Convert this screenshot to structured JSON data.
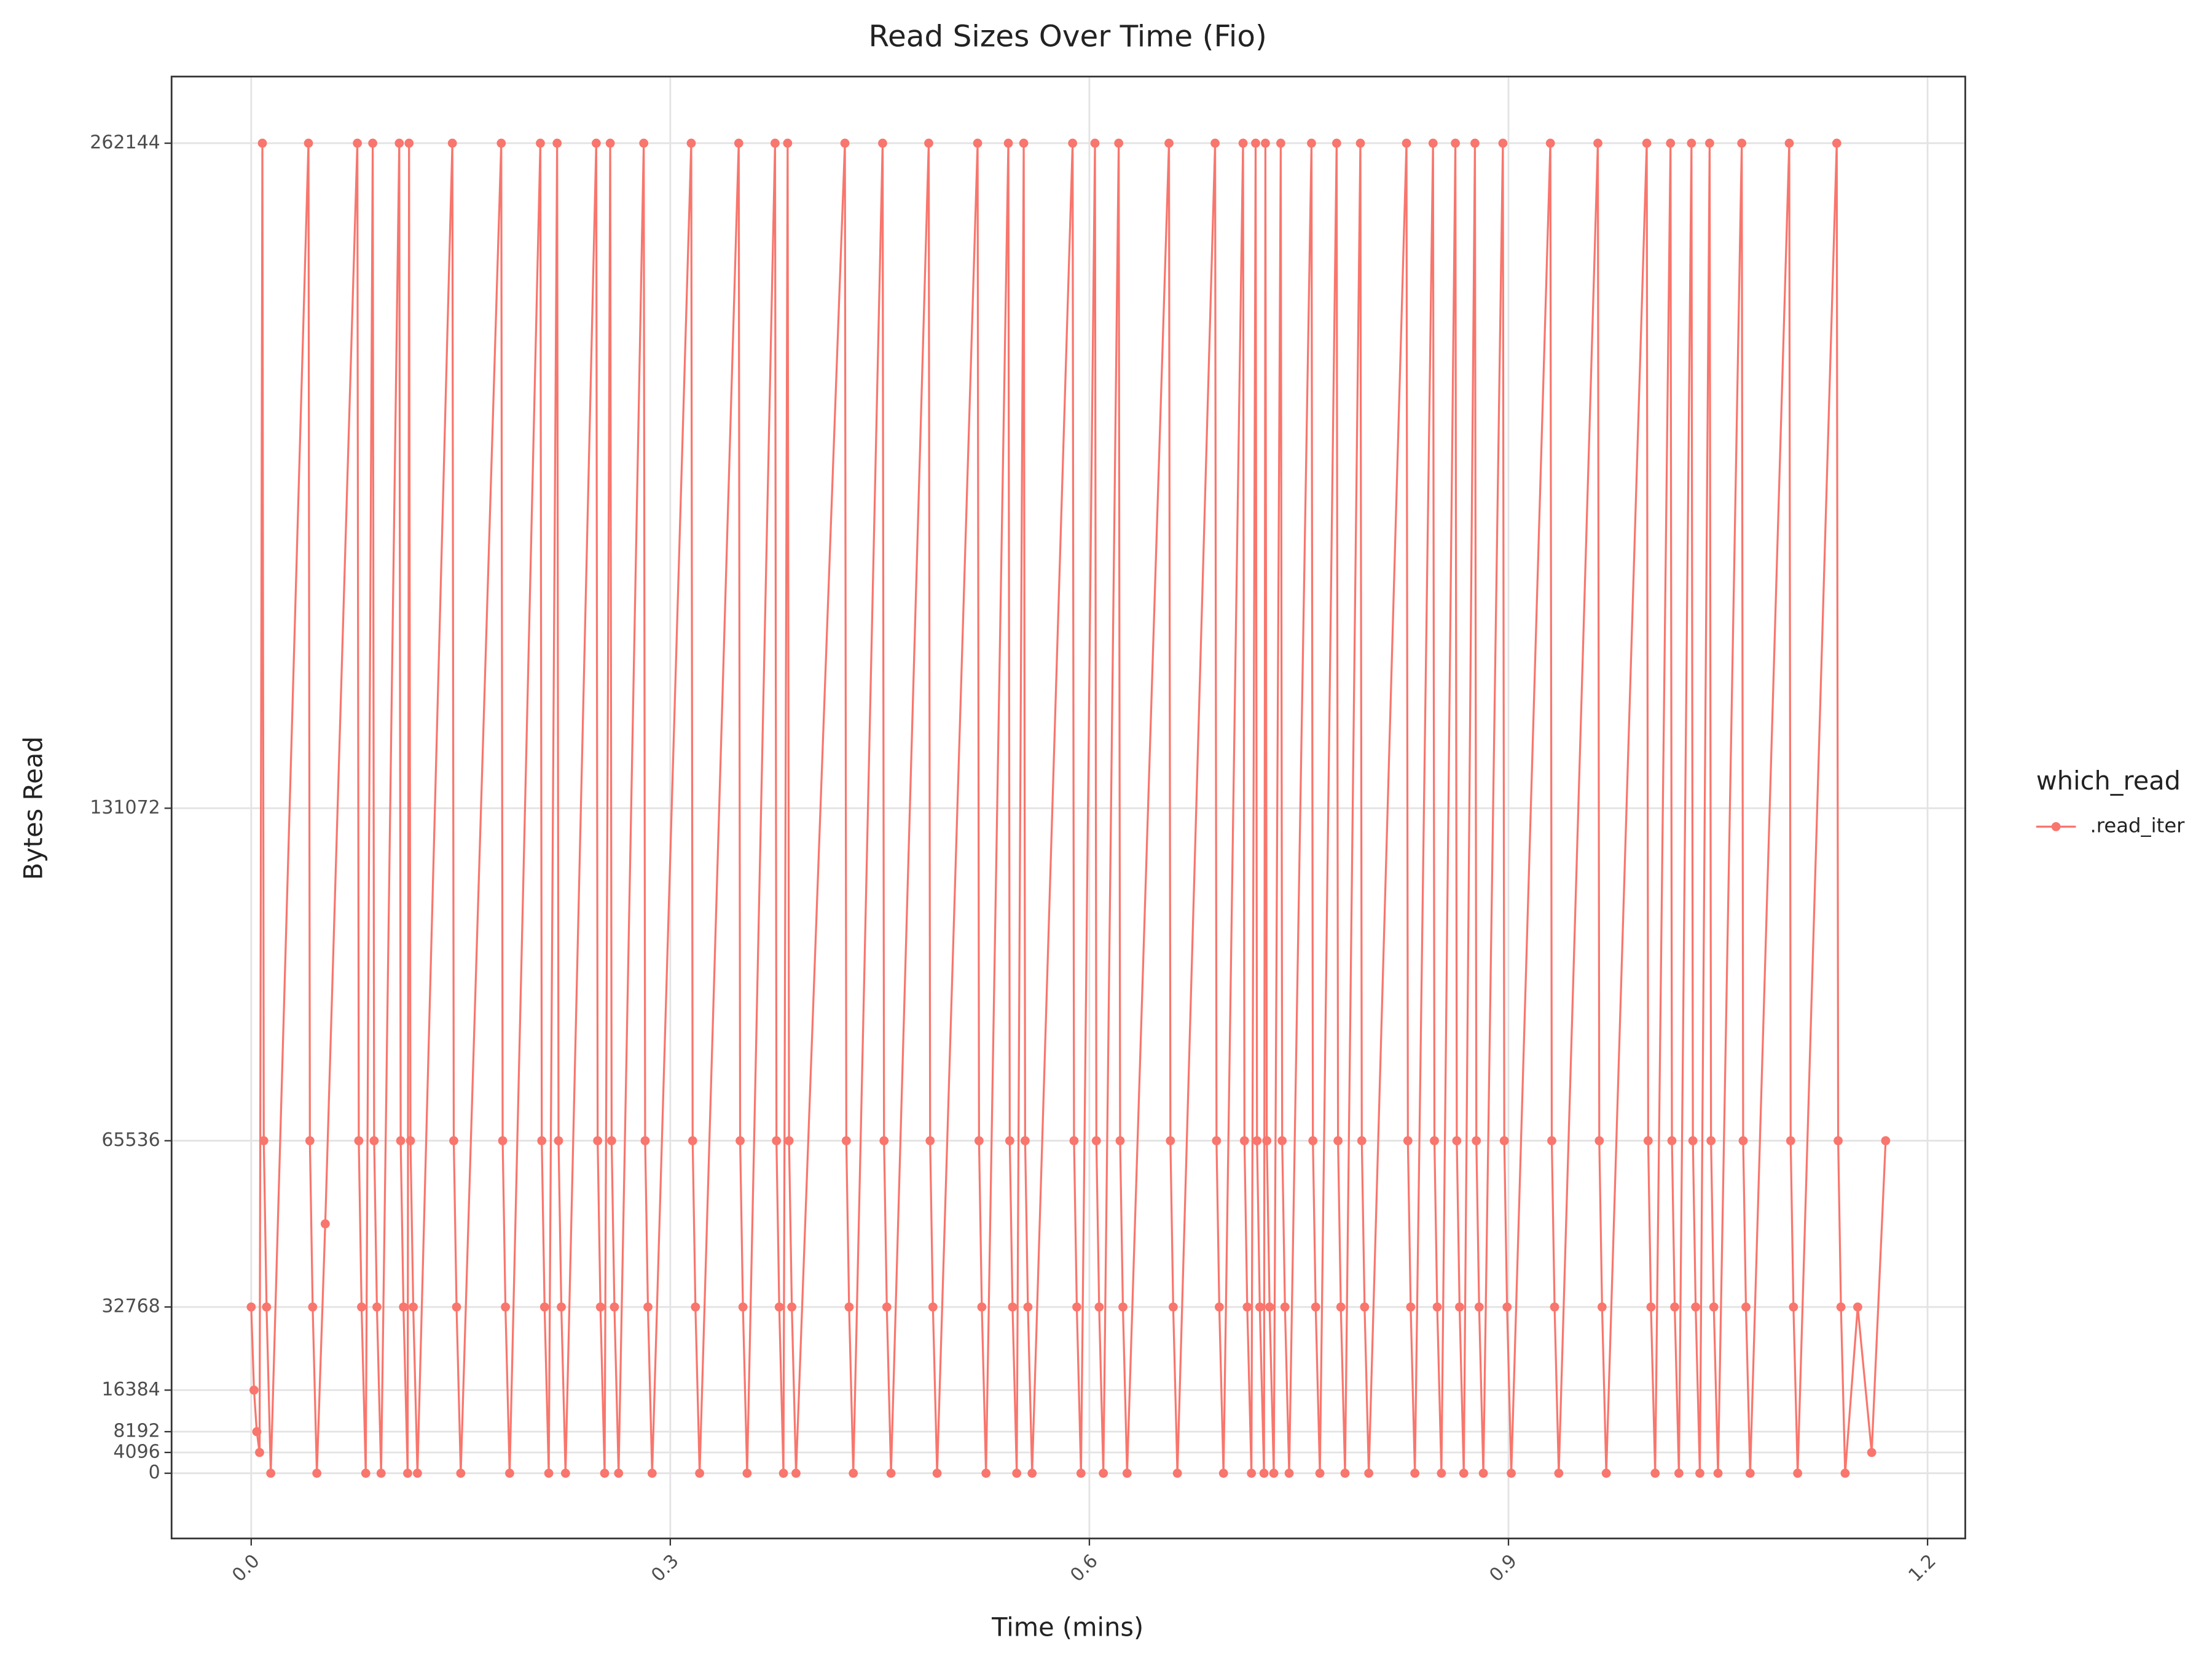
{
  "chart_data": {
    "type": "line",
    "title": "Read Sizes Over Time (Fio)",
    "x_label": "Time (mins)",
    "y_label": "Bytes Read",
    "legend_title": "which_read",
    "legend_position": "right",
    "grid": true,
    "xlim": [
      -0.057,
      1.227
    ],
    "xticks": [
      {
        "value": 0,
        "label": "0.0"
      },
      0.3,
      0.6,
      0.9,
      1.2
    ],
    "ylim": [
      -12856,
      275276
    ],
    "yticks": [
      0,
      4096,
      8192,
      16384,
      32768,
      65536,
      131072,
      262144
    ],
    "x": [
      0,
      0.002,
      0.004,
      0.006,
      0.008,
      0.009,
      0.011,
      0.014,
      0.041,
      0.042,
      0.044,
      0.047,
      0.053,
      0.076,
      0.077,
      0.079,
      0.082,
      0.087,
      0.088,
      0.09,
      0.093,
      0.106,
      0.107,
      0.109,
      0.112,
      0.113,
      0.114,
      0.116,
      0.119,
      0.144,
      0.145,
      0.147,
      0.15,
      0.179,
      0.18,
      0.182,
      0.185,
      0.207,
      0.208,
      0.21,
      0.213,
      0.219,
      0.22,
      0.222,
      0.225,
      0.247,
      0.248,
      0.25,
      0.253,
      0.257,
      0.258,
      0.26,
      0.263,
      0.281,
      0.282,
      0.284,
      0.287,
      0.315,
      0.316,
      0.318,
      0.321,
      0.349,
      0.35,
      0.352,
      0.355,
      0.375,
      0.376,
      0.378,
      0.381,
      0.384,
      0.385,
      0.387,
      0.39,
      0.425,
      0.426,
      0.428,
      0.431,
      0.452,
      0.453,
      0.455,
      0.458,
      0.485,
      0.486,
      0.488,
      0.491,
      0.52,
      0.521,
      0.523,
      0.526,
      0.542,
      0.543,
      0.545,
      0.548,
      0.553,
      0.554,
      0.556,
      0.559,
      0.588,
      0.589,
      0.591,
      0.594,
      0.604,
      0.605,
      0.607,
      0.61,
      0.621,
      0.622,
      0.624,
      0.627,
      0.657,
      0.658,
      0.66,
      0.663,
      0.69,
      0.691,
      0.693,
      0.696,
      0.71,
      0.711,
      0.713,
      0.716,
      0.719,
      0.72,
      0.722,
      0.725,
      0.726,
      0.727,
      0.729,
      0.732,
      0.737,
      0.738,
      0.74,
      0.743,
      0.759,
      0.76,
      0.762,
      0.765,
      0.777,
      0.778,
      0.78,
      0.783,
      0.794,
      0.795,
      0.797,
      0.8,
      0.827,
      0.828,
      0.83,
      0.833,
      0.846,
      0.847,
      0.849,
      0.852,
      0.862,
      0.863,
      0.865,
      0.868,
      0.876,
      0.877,
      0.879,
      0.882,
      0.896,
      0.897,
      0.899,
      0.902,
      0.93,
      0.931,
      0.933,
      0.936,
      0.964,
      0.965,
      0.967,
      0.97,
      0.999,
      1,
      1.002,
      1.005,
      1.016,
      1.017,
      1.019,
      1.022,
      1.031,
      1.032,
      1.034,
      1.037,
      1.044,
      1.045,
      1.047,
      1.05,
      1.067,
      1.068,
      1.07,
      1.073,
      1.101,
      1.102,
      1.104,
      1.107,
      1.135,
      1.136,
      1.138,
      1.141,
      1.15,
      1.16,
      1.17
    ],
    "series": [
      {
        "name": ".read_iter",
        "color": "#f8766d",
        "values": [
          32768,
          16384,
          8192,
          4096,
          262144,
          65536,
          32768,
          0,
          262144,
          65536,
          32768,
          0,
          49152,
          262144,
          65536,
          32768,
          0,
          262144,
          65536,
          32768,
          0,
          262144,
          65536,
          32768,
          0,
          262144,
          65536,
          32768,
          0,
          262144,
          65536,
          32768,
          0,
          262144,
          65536,
          32768,
          0,
          262144,
          65536,
          32768,
          0,
          262144,
          65536,
          32768,
          0,
          262144,
          65536,
          32768,
          0,
          262144,
          65536,
          32768,
          0,
          262144,
          65536,
          32768,
          0,
          262144,
          65536,
          32768,
          0,
          262144,
          65536,
          32768,
          0,
          262144,
          65536,
          32768,
          0,
          262144,
          65536,
          32768,
          0,
          262144,
          65536,
          32768,
          0,
          262144,
          65536,
          32768,
          0,
          262144,
          65536,
          32768,
          0,
          262144,
          65536,
          32768,
          0,
          262144,
          65536,
          32768,
          0,
          262144,
          65536,
          32768,
          0,
          262144,
          65536,
          32768,
          0,
          262144,
          65536,
          32768,
          0,
          262144,
          65536,
          32768,
          0,
          262144,
          65536,
          32768,
          0,
          262144,
          65536,
          32768,
          0,
          262144,
          65536,
          32768,
          0,
          262144,
          65536,
          32768,
          0,
          262144,
          65536,
          32768,
          0,
          262144,
          65536,
          32768,
          0,
          262144,
          65536,
          32768,
          0,
          262144,
          65536,
          32768,
          0,
          262144,
          65536,
          32768,
          0,
          262144,
          65536,
          32768,
          0,
          262144,
          65536,
          32768,
          0,
          262144,
          65536,
          32768,
          0,
          262144,
          65536,
          32768,
          0,
          262144,
          65536,
          32768,
          0,
          262144,
          65536,
          32768,
          0,
          262144,
          65536,
          32768,
          0,
          262144,
          65536,
          32768,
          0,
          262144,
          65536,
          32768,
          0,
          262144,
          65536,
          32768,
          0,
          262144,
          65536,
          32768,
          0,
          262144,
          65536,
          32768,
          0,
          262144,
          65536,
          32768,
          0,
          262144,
          65536,
          32768,
          0,
          32768,
          4096,
          65536
        ]
      }
    ]
  }
}
